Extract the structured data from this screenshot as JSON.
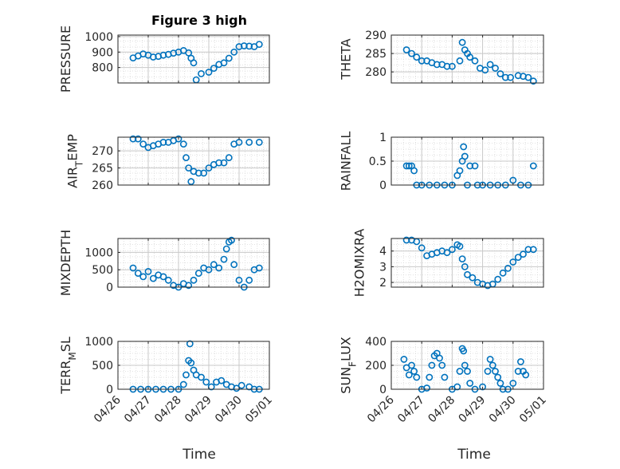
{
  "figure": {
    "title": "Figure 3 high",
    "xlabel": "Time",
    "x_ticks": [
      "04/26",
      "04/27",
      "04/28",
      "04/29",
      "04/30",
      "05/01"
    ],
    "colors": {
      "marker": "#0072BD",
      "axis": "#262626",
      "grid": "#d9d9d9",
      "background": "#ffffff"
    }
  },
  "chart_data": [
    {
      "type": "scatter",
      "ylabel": "PRESSURE",
      "y_ticks": [
        800,
        900,
        1000
      ],
      "ylim": [
        700,
        1010
      ],
      "grid": true,
      "marker": "circle",
      "x": [
        "04/26 12:00",
        "04/26 16:00",
        "04/26 20:00",
        "04/27 00:00",
        "04/27 04:00",
        "04/27 08:00",
        "04/27 12:00",
        "04/27 16:00",
        "04/27 20:00",
        "04/28 00:00",
        "04/28 04:00",
        "04/28 08:00",
        "04/28 10:00",
        "04/28 12:00",
        "04/28 14:00",
        "04/28 18:00",
        "04/29 00:00",
        "04/29 04:00",
        "04/29 08:00",
        "04/29 12:00",
        "04/29 16:00",
        "04/29 20:00",
        "04/30 00:00",
        "04/30 04:00",
        "04/30 08:00",
        "04/30 12:00",
        "04/30 16:00"
      ],
      "y": [
        862,
        875,
        888,
        880,
        868,
        872,
        880,
        885,
        893,
        900,
        910,
        895,
        860,
        830,
        720,
        760,
        770,
        795,
        820,
        830,
        860,
        900,
        935,
        940,
        938,
        935,
        950
      ]
    },
    {
      "type": "scatter",
      "ylabel": "THETA",
      "y_ticks": [
        280,
        285,
        290
      ],
      "ylim": [
        277,
        290
      ],
      "grid": true,
      "marker": "circle",
      "x": [
        "04/26 12:00",
        "04/26 16:00",
        "04/26 20:00",
        "04/27 00:00",
        "04/27 04:00",
        "04/27 08:00",
        "04/27 12:00",
        "04/27 16:00",
        "04/27 20:00",
        "04/28 00:00",
        "04/28 06:00",
        "04/28 08:00",
        "04/28 10:00",
        "04/28 12:00",
        "04/28 14:00",
        "04/28 18:00",
        "04/28 22:00",
        "04/29 02:00",
        "04/29 06:00",
        "04/29 10:00",
        "04/29 14:00",
        "04/29 18:00",
        "04/29 22:00",
        "04/30 04:00",
        "04/30 08:00",
        "04/30 12:00",
        "04/30 16:00"
      ],
      "y": [
        286,
        285,
        284,
        283,
        283,
        282.5,
        282,
        282,
        281.5,
        281.5,
        283,
        288,
        286,
        285,
        284,
        283,
        281,
        280.5,
        282,
        281,
        279.5,
        278.5,
        278.5,
        279,
        278.8,
        278.5,
        277.5
      ]
    },
    {
      "type": "scatter",
      "ylabel": "AIR_TEMP",
      "y_ticks": [
        260,
        265,
        270
      ],
      "ylim": [
        260,
        274
      ],
      "grid": true,
      "marker": "circle",
      "x": [
        "04/26 12:00",
        "04/26 16:00",
        "04/26 20:00",
        "04/27 00:00",
        "04/27 04:00",
        "04/27 08:00",
        "04/27 12:00",
        "04/27 16:00",
        "04/27 20:00",
        "04/28 00:00",
        "04/28 04:00",
        "04/28 06:00",
        "04/28 08:00",
        "04/28 10:00",
        "04/28 12:00",
        "04/28 16:00",
        "04/28 20:00",
        "04/29 00:00",
        "04/29 04:00",
        "04/29 08:00",
        "04/29 12:00",
        "04/29 16:00",
        "04/29 20:00",
        "04/30 00:00",
        "04/30 08:00",
        "04/30 16:00"
      ],
      "y": [
        273.5,
        273.5,
        272,
        271,
        271.5,
        272,
        272.5,
        272.5,
        273,
        273.5,
        272,
        268,
        265,
        261,
        264,
        263.5,
        263.5,
        265,
        266,
        266.5,
        266.5,
        268,
        272,
        272.5,
        272.5,
        272.5
      ]
    },
    {
      "type": "scatter",
      "ylabel": "RAINFALL",
      "y_ticks": [
        0,
        0.5,
        1
      ],
      "ylim": [
        0,
        1
      ],
      "grid": true,
      "marker": "circle",
      "x": [
        "04/26 12:00",
        "04/26 14:00",
        "04/26 16:00",
        "04/26 18:00",
        "04/26 20:00",
        "04/27 00:00",
        "04/27 06:00",
        "04/27 12:00",
        "04/27 18:00",
        "04/28 00:00",
        "04/28 04:00",
        "04/28 06:00",
        "04/28 08:00",
        "04/28 09:00",
        "04/28 10:00",
        "04/28 12:00",
        "04/28 14:00",
        "04/28 18:00",
        "04/28 20:00",
        "04/29 00:00",
        "04/29 06:00",
        "04/29 12:00",
        "04/29 18:00",
        "04/30 00:00",
        "04/30 06:00",
        "04/30 12:00",
        "04/30 16:00"
      ],
      "y": [
        0.4,
        0.4,
        0.4,
        0.3,
        0,
        0,
        0,
        0,
        0,
        0,
        0.2,
        0.3,
        0.5,
        0.8,
        0.6,
        0,
        0.4,
        0.4,
        0,
        0,
        0,
        0,
        0,
        0.1,
        0,
        0,
        0.4
      ]
    },
    {
      "type": "scatter",
      "ylabel": "MIXDEPTH",
      "y_ticks": [
        0,
        500,
        1000
      ],
      "ylim": [
        0,
        1400
      ],
      "grid": true,
      "marker": "circle",
      "x": [
        "04/26 12:00",
        "04/26 16:00",
        "04/26 20:00",
        "04/27 00:00",
        "04/27 04:00",
        "04/27 08:00",
        "04/27 12:00",
        "04/27 16:00",
        "04/27 20:00",
        "04/28 00:00",
        "04/28 04:00",
        "04/28 08:00",
        "04/28 12:00",
        "04/28 16:00",
        "04/28 20:00",
        "04/29 00:00",
        "04/29 04:00",
        "04/29 08:00",
        "04/29 12:00",
        "04/29 14:00",
        "04/29 16:00",
        "04/29 18:00",
        "04/29 20:00",
        "04/30 00:00",
        "04/30 04:00",
        "04/30 08:00",
        "04/30 12:00",
        "04/30 16:00"
      ],
      "y": [
        550,
        400,
        300,
        450,
        250,
        350,
        300,
        200,
        50,
        0,
        100,
        50,
        200,
        400,
        550,
        500,
        650,
        550,
        800,
        1100,
        1300,
        1350,
        650,
        200,
        0,
        200,
        500,
        550
      ]
    },
    {
      "type": "scatter",
      "ylabel": "H2OMIXRA",
      "y_ticks": [
        2,
        3,
        4
      ],
      "ylim": [
        1.7,
        4.8
      ],
      "grid": true,
      "marker": "circle",
      "x": [
        "04/26 12:00",
        "04/26 16:00",
        "04/26 20:00",
        "04/27 00:00",
        "04/27 04:00",
        "04/27 08:00",
        "04/27 12:00",
        "04/27 16:00",
        "04/27 20:00",
        "04/28 00:00",
        "04/28 04:00",
        "04/28 06:00",
        "04/28 08:00",
        "04/28 10:00",
        "04/28 12:00",
        "04/28 16:00",
        "04/28 20:00",
        "04/29 00:00",
        "04/29 04:00",
        "04/29 08:00",
        "04/29 12:00",
        "04/29 16:00",
        "04/29 20:00",
        "04/30 00:00",
        "04/30 04:00",
        "04/30 08:00",
        "04/30 12:00",
        "04/30 16:00"
      ],
      "y": [
        4.7,
        4.7,
        4.6,
        4.2,
        3.7,
        3.8,
        3.9,
        4.0,
        3.9,
        4.1,
        4.4,
        4.3,
        3.5,
        3.0,
        2.5,
        2.3,
        2.0,
        1.9,
        1.8,
        1.9,
        2.2,
        2.6,
        2.9,
        3.3,
        3.6,
        3.8,
        4.1,
        4.1
      ]
    },
    {
      "type": "scatter",
      "ylabel": "TERR_MSL",
      "y_ticks": [
        0,
        500,
        1000
      ],
      "ylim": [
        0,
        1000
      ],
      "grid": true,
      "marker": "circle",
      "x": [
        "04/26 12:00",
        "04/26 18:00",
        "04/27 00:00",
        "04/27 06:00",
        "04/27 12:00",
        "04/27 18:00",
        "04/28 00:00",
        "04/28 04:00",
        "04/28 06:00",
        "04/28 08:00",
        "04/28 09:00",
        "04/28 10:00",
        "04/28 12:00",
        "04/28 14:00",
        "04/28 18:00",
        "04/28 22:00",
        "04/29 02:00",
        "04/29 06:00",
        "04/29 10:00",
        "04/29 14:00",
        "04/29 18:00",
        "04/29 22:00",
        "04/30 02:00",
        "04/30 08:00",
        "04/30 12:00",
        "04/30 16:00"
      ],
      "y": [
        0,
        0,
        0,
        0,
        0,
        0,
        0,
        100,
        300,
        600,
        950,
        550,
        400,
        300,
        250,
        150,
        50,
        150,
        180,
        100,
        50,
        20,
        80,
        50,
        0,
        0
      ]
    },
    {
      "type": "scatter",
      "ylabel": "SUN_FLUX",
      "y_ticks": [
        0,
        200,
        400
      ],
      "ylim": [
        0,
        400
      ],
      "grid": true,
      "marker": "circle",
      "x": [
        "04/26 10:00",
        "04/26 12:00",
        "04/26 14:00",
        "04/26 16:00",
        "04/26 18:00",
        "04/26 20:00",
        "04/27 00:00",
        "04/27 04:00",
        "04/27 06:00",
        "04/27 08:00",
        "04/27 10:00",
        "04/27 12:00",
        "04/27 14:00",
        "04/27 16:00",
        "04/27 18:00",
        "04/28 00:00",
        "04/28 04:00",
        "04/28 06:00",
        "04/28 08:00",
        "04/28 09:00",
        "04/28 10:00",
        "04/28 12:00",
        "04/28 14:00",
        "04/28 18:00",
        "04/29 00:00",
        "04/29 04:00",
        "04/29 06:00",
        "04/29 08:00",
        "04/29 10:00",
        "04/29 12:00",
        "04/29 14:00",
        "04/29 16:00",
        "04/29 20:00",
        "04/30 00:00",
        "04/30 04:00",
        "04/30 06:00",
        "04/30 08:00",
        "04/30 10:00"
      ],
      "y": [
        250,
        180,
        120,
        200,
        150,
        100,
        0,
        10,
        100,
        200,
        280,
        300,
        260,
        200,
        100,
        0,
        20,
        150,
        340,
        320,
        200,
        150,
        50,
        0,
        20,
        150,
        250,
        200,
        150,
        100,
        50,
        0,
        0,
        50,
        150,
        230,
        150,
        120
      ]
    }
  ]
}
